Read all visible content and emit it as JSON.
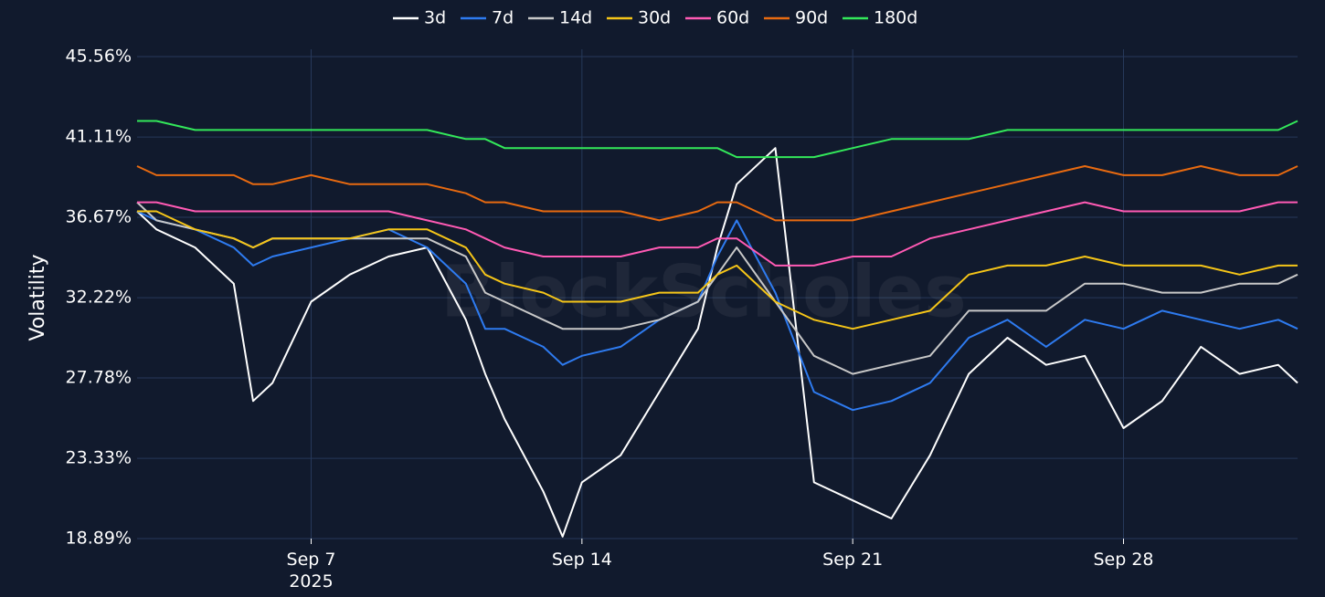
{
  "chart_data": {
    "type": "line",
    "title": "",
    "xlabel": "",
    "ylabel": "Volatility",
    "watermark": "BlockScholes",
    "grid": true,
    "legend_placement": "top-center",
    "background": "#111a2d",
    "gridline_color": "#26385a",
    "x_ticks": [
      {
        "date": "2025-09-07",
        "label": "Sep 7",
        "sublabel": "2025"
      },
      {
        "date": "2025-09-14",
        "label": "Sep 14",
        "sublabel": ""
      },
      {
        "date": "2025-09-21",
        "label": "Sep 21",
        "sublabel": ""
      },
      {
        "date": "2025-09-28",
        "label": "Sep 28",
        "sublabel": ""
      }
    ],
    "y_ticks": [
      "18.89%",
      "23.33%",
      "27.78%",
      "32.22%",
      "36.67%",
      "41.11%",
      "45.56%"
    ],
    "y_tick_values": [
      18.89,
      23.33,
      27.78,
      32.22,
      36.67,
      41.11,
      45.56
    ],
    "ylim": [
      18.89,
      45.56
    ],
    "xlim": [
      "2025-09-02T12:00",
      "2025-10-02T12:00"
    ],
    "x": [
      "2025-09-02T12:00",
      "2025-09-03T00:00",
      "2025-09-04T00:00",
      "2025-09-05T00:00",
      "2025-09-05T12:00",
      "2025-09-06T00:00",
      "2025-09-07T00:00",
      "2025-09-08T00:00",
      "2025-09-09T00:00",
      "2025-09-10T00:00",
      "2025-09-11T00:00",
      "2025-09-11T12:00",
      "2025-09-12T00:00",
      "2025-09-13T00:00",
      "2025-09-13T12:00",
      "2025-09-14T00:00",
      "2025-09-15T00:00",
      "2025-09-16T00:00",
      "2025-09-17T00:00",
      "2025-09-17T12:00",
      "2025-09-18T00:00",
      "2025-09-19T00:00",
      "2025-09-20T00:00",
      "2025-09-21T00:00",
      "2025-09-22T00:00",
      "2025-09-23T00:00",
      "2025-09-24T00:00",
      "2025-09-25T00:00",
      "2025-09-26T00:00",
      "2025-09-27T00:00",
      "2025-09-28T00:00",
      "2025-09-29T00:00",
      "2025-09-30T00:00",
      "2025-10-01T00:00",
      "2025-10-02T00:00",
      "2025-10-02T12:00"
    ],
    "series": [
      {
        "name": "3d",
        "color": "#ffffff",
        "values": [
          37.0,
          36.0,
          35.0,
          33.0,
          26.5,
          27.5,
          32.0,
          33.5,
          34.5,
          35.0,
          31.0,
          28.0,
          25.5,
          21.5,
          19.0,
          22.0,
          23.5,
          27.0,
          30.5,
          35.0,
          38.5,
          40.5,
          22.0,
          21.0,
          20.0,
          23.5,
          28.0,
          30.0,
          28.5,
          29.0,
          25.0,
          26.5,
          29.5,
          28.0,
          28.5,
          27.5
        ]
      },
      {
        "name": "7d",
        "color": "#2e7bf0",
        "values": [
          37.0,
          36.5,
          36.0,
          35.0,
          34.0,
          34.5,
          35.0,
          35.5,
          36.0,
          35.0,
          33.0,
          30.5,
          30.5,
          29.5,
          28.5,
          29.0,
          29.5,
          31.0,
          32.0,
          34.5,
          36.5,
          32.5,
          27.0,
          26.0,
          26.5,
          27.5,
          30.0,
          31.0,
          29.5,
          31.0,
          30.5,
          31.5,
          31.0,
          30.5,
          31.0,
          30.5
        ]
      },
      {
        "name": "14d",
        "color": "#c8c8c8",
        "values": [
          37.5,
          36.5,
          36.0,
          35.5,
          35.0,
          35.5,
          35.5,
          35.5,
          35.5,
          35.5,
          34.5,
          32.5,
          32.0,
          31.0,
          30.5,
          30.5,
          30.5,
          31.0,
          32.0,
          33.5,
          35.0,
          32.0,
          29.0,
          28.0,
          28.5,
          29.0,
          31.5,
          31.5,
          31.5,
          33.0,
          33.0,
          32.5,
          32.5,
          33.0,
          33.0,
          33.5
        ]
      },
      {
        "name": "30d",
        "color": "#f5c518",
        "values": [
          37.0,
          37.0,
          36.0,
          35.5,
          35.0,
          35.5,
          35.5,
          35.5,
          36.0,
          36.0,
          35.0,
          33.5,
          33.0,
          32.5,
          32.0,
          32.0,
          32.0,
          32.5,
          32.5,
          33.5,
          34.0,
          32.0,
          31.0,
          30.5,
          31.0,
          31.5,
          33.5,
          34.0,
          34.0,
          34.5,
          34.0,
          34.0,
          34.0,
          33.5,
          34.0,
          34.0
        ]
      },
      {
        "name": "60d",
        "color": "#ff5ab4",
        "values": [
          37.5,
          37.5,
          37.0,
          37.0,
          37.0,
          37.0,
          37.0,
          37.0,
          37.0,
          36.5,
          36.0,
          35.5,
          35.0,
          34.5,
          34.5,
          34.5,
          34.5,
          35.0,
          35.0,
          35.5,
          35.5,
          34.0,
          34.0,
          34.5,
          34.5,
          35.5,
          36.0,
          36.5,
          37.0,
          37.5,
          37.0,
          37.0,
          37.0,
          37.0,
          37.5,
          37.5
        ]
      },
      {
        "name": "90d",
        "color": "#e86a10",
        "values": [
          39.5,
          39.0,
          39.0,
          39.0,
          38.5,
          38.5,
          39.0,
          38.5,
          38.5,
          38.5,
          38.0,
          37.5,
          37.5,
          37.0,
          37.0,
          37.0,
          37.0,
          36.5,
          37.0,
          37.5,
          37.5,
          36.5,
          36.5,
          36.5,
          37.0,
          37.5,
          38.0,
          38.5,
          39.0,
          39.5,
          39.0,
          39.0,
          39.5,
          39.0,
          39.0,
          39.5
        ]
      },
      {
        "name": "180d",
        "color": "#33e85a",
        "values": [
          42.0,
          42.0,
          41.5,
          41.5,
          41.5,
          41.5,
          41.5,
          41.5,
          41.5,
          41.5,
          41.0,
          41.0,
          40.5,
          40.5,
          40.5,
          40.5,
          40.5,
          40.5,
          40.5,
          40.5,
          40.0,
          40.0,
          40.0,
          40.5,
          41.0,
          41.0,
          41.0,
          41.5,
          41.5,
          41.5,
          41.5,
          41.5,
          41.5,
          41.5,
          41.5,
          42.0
        ]
      }
    ]
  }
}
